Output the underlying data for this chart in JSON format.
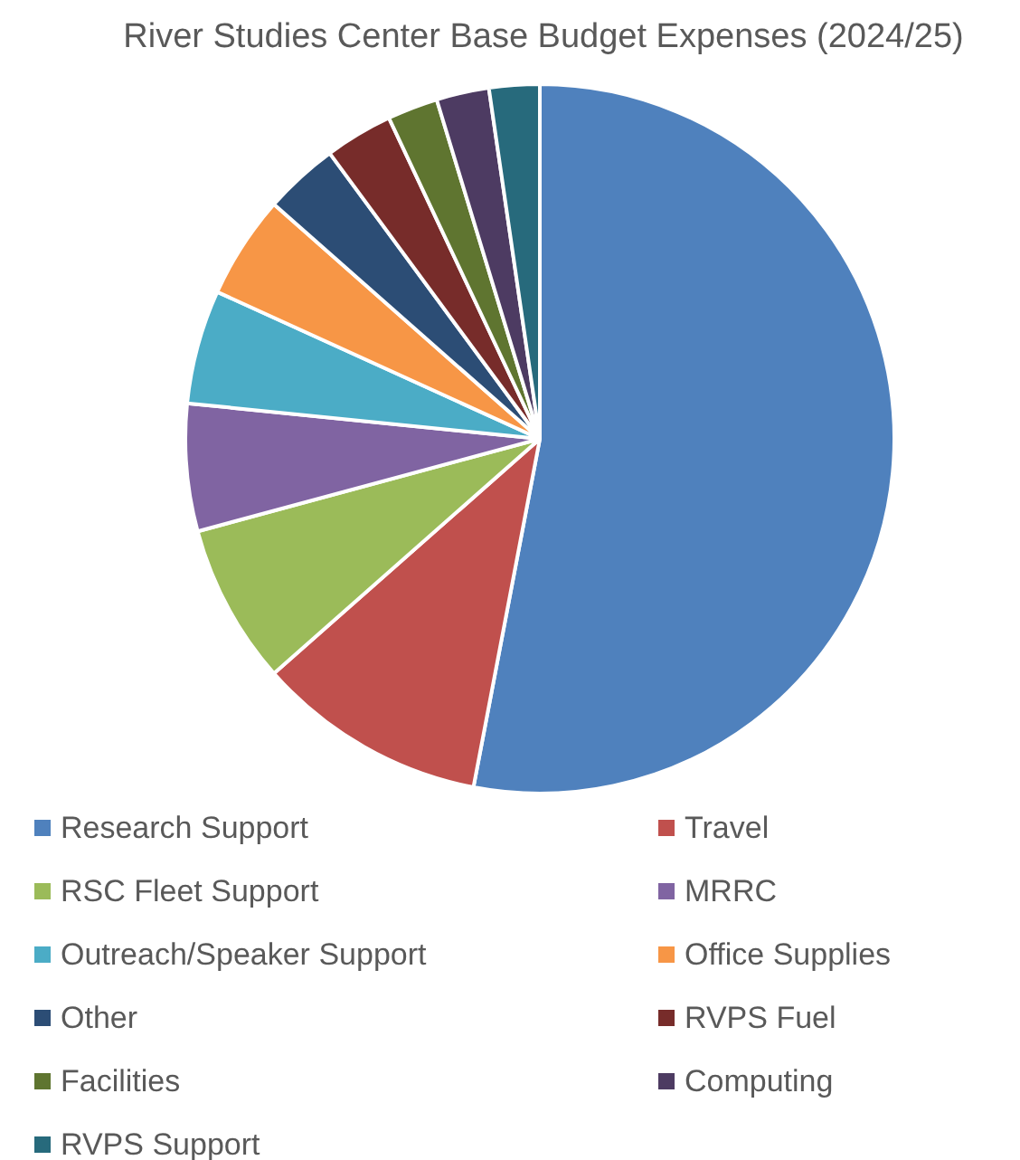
{
  "chart_data": {
    "type": "pie",
    "title": "River Studies Center Base Budget Expenses (2024/25)",
    "categories": [
      "Research Support",
      "Travel",
      "RSC Fleet Support",
      "MRRC",
      "Outreach/Speaker Support",
      "Office Supplies",
      "Other",
      "RVPS Fuel",
      "Facilities",
      "Computing",
      "RVPS Support"
    ],
    "values": [
      53,
      10.5,
      7.3,
      5.8,
      5.2,
      4.7,
      3.4,
      3.1,
      2.3,
      2.4,
      2.3
    ],
    "colors": [
      "#4f81bd",
      "#c0504d",
      "#9bbb59",
      "#8064a2",
      "#4bacc6",
      "#f79646",
      "#2c4d75",
      "#772c2a",
      "#5f7530",
      "#4d3b62",
      "#276a7c"
    ],
    "legend": "bottom"
  }
}
